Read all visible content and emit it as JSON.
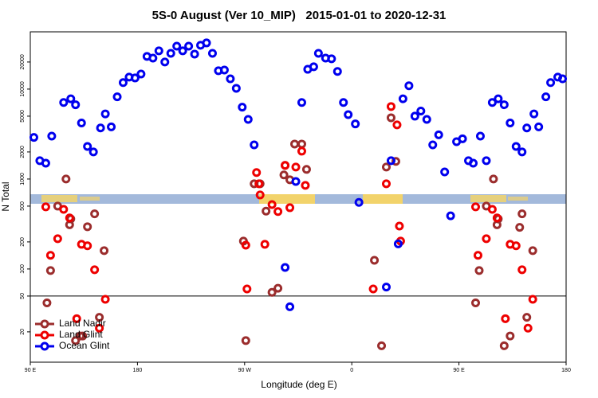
{
  "chart_data": {
    "type": "scatter",
    "title": "5S-0 August (Ver 10_MIP)   2015-01-01 to 2020-12-31",
    "x_label": "Longitude (deg E)",
    "y_label": "N Total",
    "xlim": [
      90,
      540
    ],
    "ylim": [
      9.2,
      43300
    ],
    "log_y": true,
    "xticks": [
      {
        "value": 90,
        "label": "90 E"
      },
      180,
      {
        "value": 270,
        "label": "90 W"
      },
      {
        "value": 360,
        "label": "0"
      },
      {
        "value": 450,
        "label": "90 E"
      },
      {
        "value": 540,
        "label": "180"
      }
    ],
    "yticks": [
      20,
      50,
      100,
      200,
      500,
      1000,
      2000,
      5000,
      10000,
      20000
    ],
    "hline": 50,
    "legend": "bottom-left",
    "series": [
      {
        "name": "Land Nadir",
        "color": "#9b2d2d",
        "x": [
          104,
          107,
          113,
          120,
          123,
          124,
          128,
          132,
          134,
          138,
          144,
          148,
          152,
          269,
          271,
          278,
          283,
          288,
          293,
          298,
          303,
          304,
          308,
          312,
          318,
          322,
          379,
          385,
          389,
          393,
          397,
          464,
          467,
          473,
          479,
          482,
          483,
          488,
          493,
          501,
          503,
          507,
          512
        ],
        "values": [
          42,
          96,
          500,
          1000,
          310,
          360,
          16,
          18,
          18,
          295,
          410,
          29,
          160,
          204,
          16,
          885,
          885,
          440,
          55,
          61,
          1110,
          1420,
          980,
          2450,
          2450,
          1280,
          125,
          14,
          1360,
          4800,
          1570,
          42,
          96,
          500,
          1000,
          310,
          360,
          14,
          18,
          290,
          410,
          29,
          160
        ]
      },
      {
        "name": "Land Glint",
        "color": "#ee0000",
        "x": [
          103,
          107,
          113,
          118,
          123,
          129,
          133,
          138,
          144,
          148,
          153,
          271,
          272,
          280,
          282,
          283,
          287,
          293,
          298,
          304,
          308,
          313,
          318,
          321,
          378,
          389,
          393,
          398,
          400,
          401,
          464,
          466,
          473,
          478,
          482,
          489,
          493,
          498,
          503,
          508,
          512
        ],
        "values": [
          490,
          142,
          217,
          460,
          370,
          28,
          188,
          181,
          98,
          22,
          46,
          184,
          60,
          1180,
          885,
          665,
          188,
          520,
          435,
          1420,
          480,
          1360,
          2040,
          850,
          60,
          885,
          6400,
          4000,
          300,
          204,
          490,
          142,
          217,
          460,
          370,
          28,
          188,
          181,
          98,
          22,
          46
        ]
      },
      {
        "name": "Ocean Glint",
        "color": "#0000ee",
        "x": [
          93,
          98,
          103,
          108,
          118,
          124,
          128,
          133,
          138,
          143,
          149,
          153,
          158,
          163,
          168,
          173,
          178,
          183,
          188,
          193,
          198,
          203,
          208,
          213,
          218,
          223,
          228,
          233,
          238,
          243,
          248,
          253,
          258,
          263,
          268,
          273,
          278,
          304,
          308,
          313,
          318,
          323,
          328,
          332,
          338,
          343,
          348,
          353,
          357,
          363,
          366,
          389,
          393,
          399,
          403,
          408,
          413,
          418,
          423,
          428,
          433,
          438,
          443,
          448,
          453,
          458,
          462,
          468,
          473,
          478,
          483,
          488,
          493,
          498,
          503,
          507,
          513,
          517,
          523,
          527,
          533,
          537
        ],
        "values": [
          2900,
          1600,
          1500,
          3000,
          7100,
          7800,
          6700,
          4200,
          2300,
          2000,
          3700,
          5300,
          3800,
          8200,
          11800,
          13600,
          13300,
          14700,
          23100,
          22100,
          26600,
          20000,
          25000,
          30000,
          26600,
          30000,
          24500,
          30700,
          32600,
          25000,
          16000,
          16300,
          13000,
          10200,
          6300,
          4600,
          2400,
          104,
          38,
          940,
          7100,
          16600,
          17700,
          25000,
          22100,
          21700,
          15700,
          7100,
          5200,
          4100,
          550,
          63,
          1600,
          190,
          7800,
          10900,
          5000,
          5700,
          4600,
          2400,
          3100,
          1200,
          390,
          2600,
          2800,
          1600,
          1500,
          3000,
          1600,
          7100,
          7800,
          6700,
          4200,
          2300,
          2000,
          3700,
          5300,
          3800,
          8200,
          11800,
          13600,
          13000
        ]
      }
    ]
  }
}
